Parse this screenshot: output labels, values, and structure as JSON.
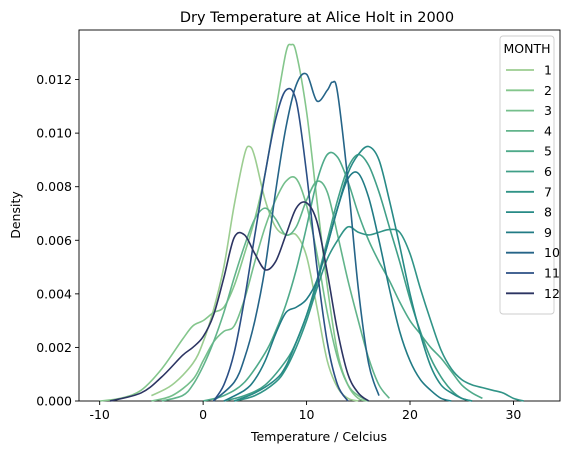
{
  "chart_data": {
    "type": "line",
    "title": "Dry Temperature at Alice Holt in 2000",
    "xlabel": "Temperature / Celcius",
    "ylabel": "Density",
    "xlim": [
      -12,
      34.5
    ],
    "ylim": [
      0,
      0.01385
    ],
    "xticks": [
      -10,
      0,
      10,
      20,
      30
    ],
    "yticks": [
      0.0,
      0.002,
      0.004,
      0.006,
      0.008,
      0.01,
      0.012
    ],
    "ytick_labels": [
      "0.000",
      "0.002",
      "0.004",
      "0.006",
      "0.008",
      "0.010",
      "0.012"
    ],
    "grid": false,
    "legend": {
      "title": "MONTH",
      "placement": "top-right"
    },
    "series": [
      {
        "name": "1",
        "color": "#9ccd91",
        "x": [
          -5,
          -3,
          -1,
          0,
          1,
          2,
          3,
          4,
          4.5,
          5,
          6,
          7,
          8,
          9,
          10,
          11,
          12,
          13,
          14,
          15
        ],
        "y": [
          0.0002,
          0.0006,
          0.0014,
          0.0022,
          0.0034,
          0.005,
          0.0073,
          0.0092,
          0.0095,
          0.0091,
          0.0075,
          0.0065,
          0.0062,
          0.0062,
          0.0054,
          0.0035,
          0.0015,
          0.0005,
          0.0001,
          0.0
        ]
      },
      {
        "name": "2",
        "color": "#84c68c",
        "x": [
          -10,
          -8,
          -6,
          -4,
          -2,
          -1,
          0,
          1,
          2,
          3,
          4,
          5,
          6,
          7,
          8,
          8.5,
          9,
          10,
          11,
          12,
          13,
          14,
          15,
          16
        ],
        "y": [
          0.0,
          0.0001,
          0.0004,
          0.0012,
          0.0023,
          0.0028,
          0.003,
          0.0033,
          0.0035,
          0.0043,
          0.0055,
          0.0068,
          0.0085,
          0.0108,
          0.013,
          0.0133,
          0.013,
          0.0108,
          0.0075,
          0.0043,
          0.0018,
          0.0006,
          0.0001,
          0.0
        ]
      },
      {
        "name": "3",
        "color": "#75bf8c",
        "x": [
          -5,
          -3,
          -1,
          0,
          1,
          2,
          3,
          4,
          5,
          6,
          7,
          8,
          9,
          10,
          11,
          12,
          13,
          14,
          15,
          16
        ],
        "y": [
          0.0,
          0.0002,
          0.0008,
          0.0015,
          0.0022,
          0.0026,
          0.0028,
          0.0038,
          0.0052,
          0.0065,
          0.0075,
          0.0082,
          0.0083,
          0.0073,
          0.0055,
          0.0033,
          0.0016,
          0.0006,
          0.0002,
          0.0
        ]
      },
      {
        "name": "4",
        "color": "#62b48b",
        "x": [
          -4,
          -2,
          -1,
          0,
          1,
          2,
          3,
          4,
          5,
          6,
          7,
          8,
          9,
          10,
          11,
          12,
          13,
          14,
          15,
          16,
          17,
          18
        ],
        "y": [
          0.0,
          0.0002,
          0.0006,
          0.0013,
          0.0022,
          0.0033,
          0.0046,
          0.0058,
          0.0068,
          0.0072,
          0.0068,
          0.0062,
          0.0065,
          0.0075,
          0.0082,
          0.0078,
          0.0062,
          0.0045,
          0.003,
          0.0016,
          0.0006,
          0.0001
        ]
      },
      {
        "name": "5",
        "color": "#4faa8a",
        "x": [
          0,
          2,
          4,
          6,
          7,
          8,
          9,
          10,
          11,
          12,
          13,
          14,
          15,
          16,
          17,
          18,
          19,
          20,
          21,
          22,
          23,
          24,
          25,
          26,
          27
        ],
        "y": [
          0.0,
          0.0002,
          0.0007,
          0.0018,
          0.0026,
          0.0036,
          0.0049,
          0.0065,
          0.0082,
          0.0092,
          0.0091,
          0.0082,
          0.007,
          0.006,
          0.0052,
          0.0045,
          0.0037,
          0.003,
          0.0025,
          0.002,
          0.0016,
          0.0011,
          0.0006,
          0.0003,
          0.0001
        ]
      },
      {
        "name": "6",
        "color": "#409f88",
        "x": [
          2,
          4,
          6,
          8,
          9,
          10,
          11,
          12,
          13,
          14,
          15,
          16,
          17,
          18,
          19,
          20,
          21,
          22,
          23,
          24,
          25,
          26
        ],
        "y": [
          0.0,
          0.0002,
          0.0006,
          0.0015,
          0.0022,
          0.0032,
          0.0045,
          0.006,
          0.0075,
          0.0087,
          0.0092,
          0.0088,
          0.0078,
          0.0065,
          0.0052,
          0.0038,
          0.0026,
          0.0016,
          0.0009,
          0.0004,
          0.0001,
          0.0
        ]
      },
      {
        "name": "7",
        "color": "#319487",
        "x": [
          3,
          5,
          7,
          8,
          9,
          10,
          11,
          12,
          13,
          14,
          15,
          16,
          17,
          18,
          19,
          20,
          21,
          22,
          23,
          24,
          25,
          26,
          27,
          28,
          29,
          30,
          31
        ],
        "y": [
          0.0,
          0.0002,
          0.0007,
          0.0012,
          0.002,
          0.003,
          0.0042,
          0.0053,
          0.006,
          0.0065,
          0.0063,
          0.0062,
          0.0063,
          0.0064,
          0.0063,
          0.0055,
          0.0042,
          0.003,
          0.0019,
          0.0012,
          0.0008,
          0.0006,
          0.0005,
          0.0004,
          0.0003,
          0.0001,
          0.0
        ]
      },
      {
        "name": "8",
        "color": "#278a86",
        "x": [
          3,
          5,
          7,
          8,
          9,
          10,
          11,
          12,
          13,
          14,
          15,
          16,
          17,
          18,
          19,
          20,
          21,
          22,
          23,
          24,
          25,
          26
        ],
        "y": [
          0.0,
          0.0003,
          0.0008,
          0.0013,
          0.0022,
          0.0032,
          0.0044,
          0.0058,
          0.0072,
          0.0085,
          0.0092,
          0.0095,
          0.009,
          0.0075,
          0.0058,
          0.004,
          0.0025,
          0.0013,
          0.0006,
          0.0003,
          0.0001,
          0.0
        ]
      },
      {
        "name": "9",
        "color": "#217b85",
        "x": [
          2,
          4,
          5,
          6,
          7,
          8,
          9,
          10,
          11,
          12,
          13,
          14,
          15,
          16,
          17,
          18,
          19,
          20,
          21,
          22,
          23,
          24
        ],
        "y": [
          0.0,
          0.0004,
          0.0008,
          0.0015,
          0.0025,
          0.0033,
          0.0035,
          0.0038,
          0.0045,
          0.0058,
          0.0072,
          0.0083,
          0.0085,
          0.0076,
          0.006,
          0.0042,
          0.0026,
          0.0015,
          0.0008,
          0.0004,
          0.0001,
          0.0
        ]
      },
      {
        "name": "10",
        "color": "#256488",
        "x": [
          1,
          3,
          4,
          5,
          6,
          7,
          8,
          9,
          10,
          11,
          12,
          12.5,
          13,
          14,
          15,
          16,
          17
        ],
        "y": [
          0.0,
          0.0007,
          0.0016,
          0.003,
          0.005,
          0.0078,
          0.0102,
          0.0118,
          0.0122,
          0.0112,
          0.0116,
          0.0119,
          0.0115,
          0.0082,
          0.0042,
          0.0014,
          0.0002
        ]
      },
      {
        "name": "11",
        "color": "#2b4f85",
        "x": [
          1,
          2,
          3,
          4,
          5,
          6,
          7,
          8,
          9,
          10,
          11,
          12,
          13,
          14
        ],
        "y": [
          0.0,
          0.0006,
          0.0018,
          0.0038,
          0.0062,
          0.0085,
          0.0105,
          0.0116,
          0.0112,
          0.0085,
          0.005,
          0.0022,
          0.0006,
          0.0
        ]
      },
      {
        "name": "12",
        "color": "#2c3462",
        "x": [
          -9,
          -6,
          -4,
          -2,
          -1,
          0,
          1,
          2,
          3,
          4,
          5,
          6,
          7,
          8,
          9,
          10,
          11,
          12,
          13,
          14,
          15,
          16
        ],
        "y": [
          0.0,
          0.0003,
          0.0009,
          0.0017,
          0.002,
          0.0024,
          0.0032,
          0.0046,
          0.0061,
          0.0062,
          0.0055,
          0.0049,
          0.0052,
          0.0062,
          0.0072,
          0.0074,
          0.0067,
          0.0048,
          0.0026,
          0.001,
          0.0003,
          0.0
        ]
      }
    ]
  }
}
